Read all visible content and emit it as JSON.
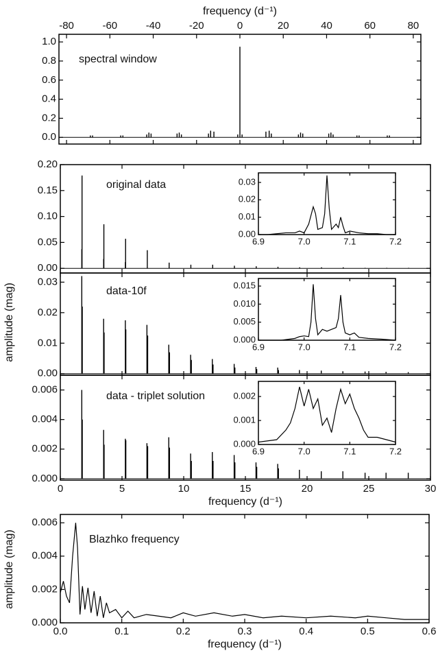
{
  "chart_data": [
    {
      "type": "stem",
      "annotation": "spectral window",
      "xlabel": "frequency (d⁻¹)",
      "xaxis": "top",
      "color": "#000000",
      "x": [
        -69,
        -68,
        -55,
        -54,
        -43,
        -42,
        -41,
        -29,
        -28,
        -27,
        -14.5,
        -13.5,
        -12,
        -1,
        0,
        1,
        12,
        13.5,
        14.5,
        27,
        28,
        29,
        41,
        42,
        43,
        54,
        55,
        68,
        69
      ],
      "values": [
        0.02,
        0.02,
        0.02,
        0.02,
        0.03,
        0.05,
        0.04,
        0.04,
        0.05,
        0.03,
        0.04,
        0.07,
        0.06,
        0.03,
        0.95,
        0.03,
        0.06,
        0.07,
        0.04,
        0.03,
        0.05,
        0.04,
        0.04,
        0.05,
        0.03,
        0.02,
        0.02,
        0.02,
        0.02
      ],
      "xlim": [
        -83.5,
        83.5
      ],
      "xticks": [
        -80,
        -60,
        -40,
        -20,
        0,
        20,
        40,
        60,
        80
      ],
      "ylim": [
        -0.07,
        1.08
      ],
      "yticks": [
        {
          "value": 0,
          "label": "0.0"
        },
        0.2,
        0.4,
        0.6,
        0.8,
        {
          "value": 1,
          "label": "1.0"
        }
      ]
    },
    {
      "type": "stem",
      "annotation": "original data",
      "color": "#000000",
      "x": [
        1.74,
        1.76,
        3.51,
        3.53,
        5.27,
        5.29,
        7.05,
        8.82,
        10.58,
        12.35,
        14.11,
        15.88,
        17.64,
        19.4,
        21.17,
        22.93,
        24.7,
        26.46,
        28.23
      ],
      "values": [
        0.037,
        0.179,
        0.018,
        0.085,
        0.012,
        0.057,
        0.035,
        0.011,
        0.007,
        0.007,
        0.005,
        0.004,
        0.003,
        0.002,
        0.002,
        0.002,
        0.001,
        0.001,
        0.001
      ],
      "xlim": [
        0,
        30
      ],
      "xticks": [
        0,
        5,
        10,
        15,
        20,
        25,
        30
      ],
      "ylim": [
        -0.009,
        0.2
      ],
      "yticks": [
        {
          "value": 0,
          "label": "0.00"
        },
        0.05,
        {
          "value": 0.1,
          "label": "0.10"
        },
        0.15,
        {
          "value": 0.2,
          "label": "0.20"
        }
      ]
    },
    {
      "type": "stem",
      "annotation": "data-10f",
      "ylabel": "amplitude (mag)",
      "color": "#000000",
      "x": [
        1.74,
        1.78,
        3.51,
        3.55,
        5.27,
        5.31,
        7.02,
        7.08,
        8.79,
        8.85,
        10.56,
        10.62,
        12.32,
        12.38,
        14.09,
        14.15,
        15.86,
        15.92,
        17.62,
        17.68,
        19.38,
        21.15,
        22.9,
        24.7,
        26.4,
        28.2
      ],
      "values": [
        0.032,
        0.022,
        0.018,
        0.0135,
        0.0175,
        0.0145,
        0.016,
        0.0125,
        0.0095,
        0.007,
        0.0062,
        0.0045,
        0.0048,
        0.003,
        0.0032,
        0.002,
        0.0022,
        0.0015,
        0.002,
        0.0012,
        0.0012,
        0.001,
        0.0008,
        0.0007,
        0.0006,
        0.0005
      ],
      "xlim": [
        0,
        30
      ],
      "xticks": [
        0,
        5,
        10,
        15,
        20,
        25,
        30
      ],
      "ylim": [
        -0.0005,
        0.033
      ],
      "yticks": [
        {
          "value": 0,
          "label": "0.00"
        },
        0.01,
        0.02,
        0.03
      ]
    },
    {
      "type": "stem",
      "annotation": "data - triplet solution",
      "xlabel": "frequency (d⁻¹)",
      "color": "#000000",
      "x": [
        1.74,
        1.78,
        3.51,
        3.55,
        5.27,
        5.31,
        7.02,
        7.08,
        8.79,
        8.85,
        10.56,
        10.62,
        12.32,
        12.38,
        14.09,
        14.15,
        15.86,
        15.92,
        17.62,
        17.68,
        19.38,
        21.15,
        22.9,
        24.7,
        26.4,
        28.2
      ],
      "values": [
        0.006,
        0.004,
        0.0033,
        0.0023,
        0.0027,
        0.0026,
        0.0024,
        0.0022,
        0.0028,
        0.0021,
        0.0017,
        0.0012,
        0.0018,
        0.0012,
        0.0016,
        0.0011,
        0.0011,
        0.0008,
        0.001,
        0.0007,
        0.0006,
        0.0005,
        0.0005,
        0.0004,
        0.0004,
        0.0004
      ],
      "xlim": [
        0,
        30
      ],
      "xticks": [
        0,
        5,
        10,
        15,
        20,
        25,
        30
      ],
      "ylim": [
        -0.0001,
        0.007
      ],
      "yticks": [
        {
          "value": 0,
          "label": "0.000"
        },
        0.002,
        0.004,
        0.006
      ]
    },
    {
      "type": "line",
      "inset": true,
      "color": "#000000",
      "x": [
        6.9,
        6.92,
        6.94,
        6.96,
        6.98,
        6.99,
        7.0,
        7.01,
        7.02,
        7.025,
        7.03,
        7.04,
        7.045,
        7.05,
        7.055,
        7.06,
        7.07,
        7.075,
        7.08,
        7.085,
        7.09,
        7.1,
        7.12,
        7.14,
        7.16,
        7.18,
        7.2
      ],
      "values": [
        0,
        0,
        0.0005,
        0.001,
        0.001,
        0.002,
        0.001,
        0.006,
        0.016,
        0.012,
        0.003,
        0.004,
        0.012,
        0.034,
        0.015,
        0.003,
        0.006,
        0.004,
        0.01,
        0.005,
        0.001,
        0.002,
        0.001,
        0.0005,
        0.0005,
        0,
        0
      ],
      "xlim": [
        6.9,
        7.2
      ],
      "xticks": [
        6.9,
        {
          "value": 7,
          "label": "7.0"
        },
        7.1,
        7.2
      ],
      "ylim": [
        0,
        0.0355
      ],
      "yticks": [
        {
          "value": 0,
          "label": "0.00"
        },
        0.01,
        0.02,
        0.03
      ]
    },
    {
      "type": "line",
      "inset": true,
      "color": "#000000",
      "x": [
        6.9,
        6.95,
        6.98,
        6.99,
        7.0,
        7.01,
        7.015,
        7.02,
        7.025,
        7.03,
        7.04,
        7.05,
        7.06,
        7.07,
        7.075,
        7.08,
        7.085,
        7.09,
        7.1,
        7.11,
        7.12,
        7.14,
        7.17,
        7.2
      ],
      "values": [
        0,
        0,
        0.0005,
        0.001,
        0.0012,
        0.001,
        0.005,
        0.0155,
        0.006,
        0.0015,
        0.003,
        0.0025,
        0.003,
        0.0035,
        0.006,
        0.0125,
        0.005,
        0.002,
        0.0015,
        0.002,
        0.0008,
        0.0005,
        0.0003,
        0
      ],
      "xlim": [
        6.9,
        7.2
      ],
      "xticks": [
        6.9,
        {
          "value": 7,
          "label": "7.0"
        },
        7.1,
        7.2
      ],
      "ylim": [
        0,
        0.0171
      ],
      "yticks": [
        {
          "value": 0,
          "label": "0.000"
        },
        0.005,
        {
          "value": 0.01,
          "label": "0.010"
        },
        0.015
      ]
    },
    {
      "type": "line",
      "inset": true,
      "color": "#000000",
      "x": [
        6.9,
        6.94,
        6.96,
        6.97,
        6.98,
        6.99,
        7.0,
        7.01,
        7.02,
        7.03,
        7.04,
        7.05,
        7.06,
        7.07,
        7.08,
        7.09,
        7.1,
        7.11,
        7.12,
        7.13,
        7.14,
        7.16,
        7.18,
        7.2
      ],
      "values": [
        0.0001,
        0.0002,
        0.0006,
        0.0009,
        0.0015,
        0.0024,
        0.0016,
        0.0023,
        0.0015,
        0.0019,
        0.0008,
        0.0011,
        0.0005,
        0.0015,
        0.0023,
        0.0017,
        0.0021,
        0.0015,
        0.0011,
        0.0006,
        0.0003,
        0.0003,
        0.0002,
        0.0001
      ],
      "xlim": [
        6.9,
        7.2
      ],
      "xticks": [
        6.9,
        {
          "value": 7,
          "label": "7.0"
        },
        7.1,
        7.2
      ],
      "ylim": [
        0,
        0.00263
      ],
      "yticks": [
        {
          "value": 0,
          "label": "0.000"
        },
        0.001,
        0.002
      ]
    },
    {
      "type": "line",
      "annotation": "Blazhko frequency",
      "xlabel": "frequency (d⁻¹)",
      "ylabel": "amplitude (mag)",
      "color": "#000000",
      "x": [
        0,
        0.005,
        0.01,
        0.015,
        0.02,
        0.025,
        0.028,
        0.032,
        0.036,
        0.04,
        0.045,
        0.05,
        0.055,
        0.06,
        0.065,
        0.07,
        0.075,
        0.08,
        0.09,
        0.1,
        0.11,
        0.12,
        0.14,
        0.16,
        0.18,
        0.2,
        0.22,
        0.25,
        0.28,
        0.3,
        0.33,
        0.36,
        0.4,
        0.44,
        0.48,
        0.5,
        0.53,
        0.56,
        0.6
      ],
      "values": [
        0.0018,
        0.0025,
        0.0016,
        0.0012,
        0.004,
        0.006,
        0.0045,
        0.0005,
        0.0022,
        0.0008,
        0.0021,
        0.0006,
        0.0019,
        0.0004,
        0.0016,
        0.0003,
        0.0012,
        0.0006,
        0.0008,
        0.0003,
        0.0007,
        0.0003,
        0.0005,
        0.0004,
        0.0003,
        0.0006,
        0.0004,
        0.0006,
        0.0004,
        0.0005,
        0.0003,
        0.0004,
        0.0003,
        0.0004,
        0.0003,
        0.0004,
        0.0003,
        0.0002,
        0.0002
      ],
      "xlim": [
        0,
        0.6
      ],
      "xticks": [
        {
          "value": 0,
          "label": "0.0"
        },
        0.1,
        0.2,
        0.3,
        0.4,
        0.5,
        0.6
      ],
      "ylim": [
        0,
        0.0065
      ],
      "yticks": [
        {
          "value": 0,
          "label": "0.000"
        },
        0.002,
        0.004,
        0.006
      ]
    }
  ]
}
